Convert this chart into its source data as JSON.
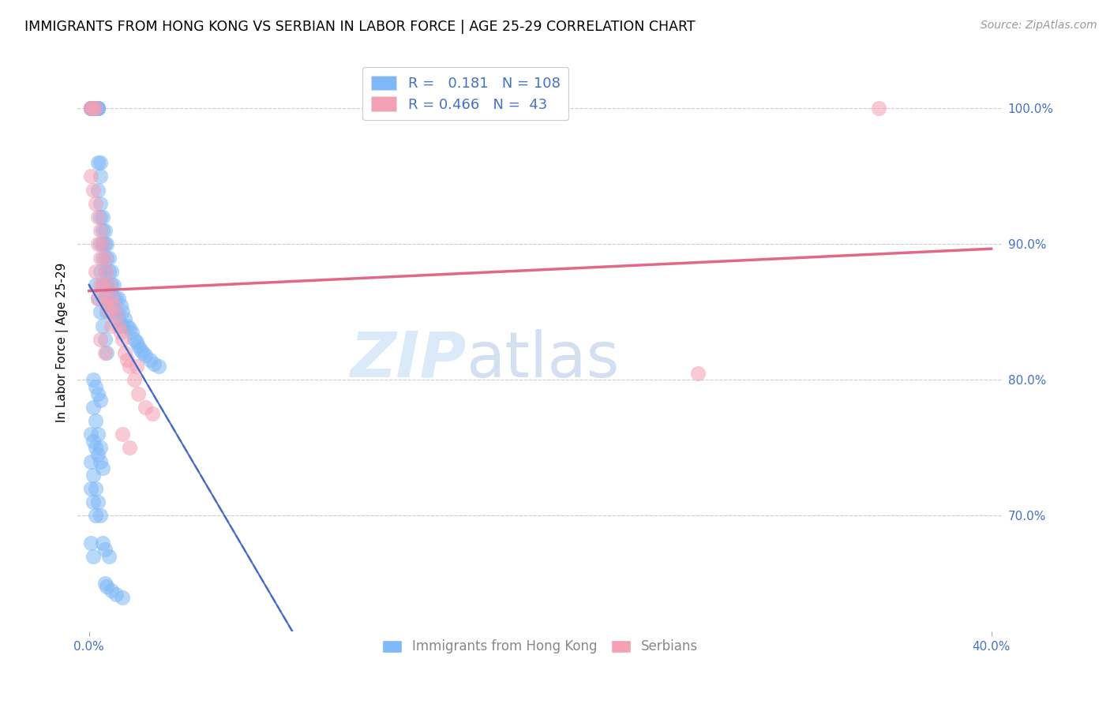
{
  "title": "IMMIGRANTS FROM HONG KONG VS SERBIAN IN LABOR FORCE | AGE 25-29 CORRELATION CHART",
  "source": "Source: ZipAtlas.com",
  "ylabel": "In Labor Force | Age 25-29",
  "xlim": [
    -0.005,
    0.405
  ],
  "ylim": [
    0.615,
    1.04
  ],
  "hk_color": "#7eb8f7",
  "serbian_color": "#f4a0b5",
  "hk_R": 0.181,
  "hk_N": 108,
  "serbian_R": 0.466,
  "serbian_N": 43,
  "right_ytick_color": "#4472c4",
  "bottom_xtick_color": "#4472c4",
  "watermark_zip": "ZIP",
  "watermark_atlas": "atlas",
  "hk_scatter_x": [
    0.001,
    0.001,
    0.001,
    0.001,
    0.001,
    0.002,
    0.002,
    0.002,
    0.002,
    0.002,
    0.003,
    0.003,
    0.003,
    0.003,
    0.003,
    0.003,
    0.004,
    0.004,
    0.004,
    0.004,
    0.004,
    0.004,
    0.005,
    0.005,
    0.005,
    0.005,
    0.005,
    0.005,
    0.006,
    0.006,
    0.006,
    0.006,
    0.006,
    0.007,
    0.007,
    0.007,
    0.007,
    0.008,
    0.008,
    0.008,
    0.008,
    0.009,
    0.009,
    0.009,
    0.01,
    0.01,
    0.01,
    0.011,
    0.011,
    0.012,
    0.012,
    0.013,
    0.013,
    0.014,
    0.014,
    0.015,
    0.015,
    0.016,
    0.017,
    0.018,
    0.019,
    0.02,
    0.021,
    0.022,
    0.023,
    0.024,
    0.025,
    0.027,
    0.029,
    0.031,
    0.003,
    0.004,
    0.005,
    0.006,
    0.007,
    0.008,
    0.002,
    0.003,
    0.004,
    0.005,
    0.001,
    0.002,
    0.003,
    0.004,
    0.005,
    0.001,
    0.002,
    0.003,
    0.001,
    0.002,
    0.001,
    0.002,
    0.003,
    0.004,
    0.005,
    0.006,
    0.002,
    0.003,
    0.004,
    0.005,
    0.007,
    0.008,
    0.01,
    0.012,
    0.015,
    0.006,
    0.007,
    0.009
  ],
  "hk_scatter_y": [
    1.0,
    1.0,
    1.0,
    1.0,
    1.0,
    1.0,
    1.0,
    1.0,
    1.0,
    1.0,
    1.0,
    1.0,
    1.0,
    1.0,
    1.0,
    1.0,
    1.0,
    1.0,
    1.0,
    1.0,
    0.96,
    0.94,
    0.96,
    0.95,
    0.93,
    0.92,
    0.9,
    0.88,
    0.92,
    0.91,
    0.9,
    0.89,
    0.87,
    0.91,
    0.9,
    0.88,
    0.86,
    0.9,
    0.89,
    0.87,
    0.85,
    0.89,
    0.88,
    0.86,
    0.88,
    0.87,
    0.85,
    0.87,
    0.86,
    0.86,
    0.85,
    0.86,
    0.845,
    0.855,
    0.84,
    0.85,
    0.84,
    0.845,
    0.84,
    0.838,
    0.835,
    0.83,
    0.828,
    0.825,
    0.822,
    0.82,
    0.818,
    0.815,
    0.812,
    0.81,
    0.87,
    0.86,
    0.85,
    0.84,
    0.83,
    0.82,
    0.78,
    0.77,
    0.76,
    0.75,
    0.74,
    0.73,
    0.72,
    0.71,
    0.7,
    0.72,
    0.71,
    0.7,
    0.68,
    0.67,
    0.76,
    0.755,
    0.75,
    0.745,
    0.74,
    0.735,
    0.8,
    0.795,
    0.79,
    0.785,
    0.65,
    0.648,
    0.645,
    0.642,
    0.64,
    0.68,
    0.675,
    0.67
  ],
  "serbian_scatter_x": [
    0.001,
    0.001,
    0.001,
    0.002,
    0.002,
    0.003,
    0.003,
    0.003,
    0.004,
    0.004,
    0.004,
    0.005,
    0.005,
    0.005,
    0.006,
    0.006,
    0.007,
    0.007,
    0.008,
    0.008,
    0.009,
    0.009,
    0.01,
    0.01,
    0.011,
    0.012,
    0.013,
    0.014,
    0.015,
    0.016,
    0.017,
    0.018,
    0.02,
    0.022,
    0.025,
    0.028,
    0.015,
    0.018,
    0.021,
    0.005,
    0.007,
    0.27,
    0.35
  ],
  "serbian_scatter_y": [
    1.0,
    1.0,
    0.95,
    1.0,
    0.94,
    1.0,
    0.93,
    0.88,
    0.92,
    0.9,
    0.86,
    0.91,
    0.89,
    0.87,
    0.9,
    0.87,
    0.89,
    0.86,
    0.88,
    0.855,
    0.87,
    0.85,
    0.86,
    0.84,
    0.855,
    0.848,
    0.84,
    0.835,
    0.83,
    0.82,
    0.815,
    0.81,
    0.8,
    0.79,
    0.78,
    0.775,
    0.76,
    0.75,
    0.81,
    0.83,
    0.82,
    0.805,
    1.0
  ]
}
